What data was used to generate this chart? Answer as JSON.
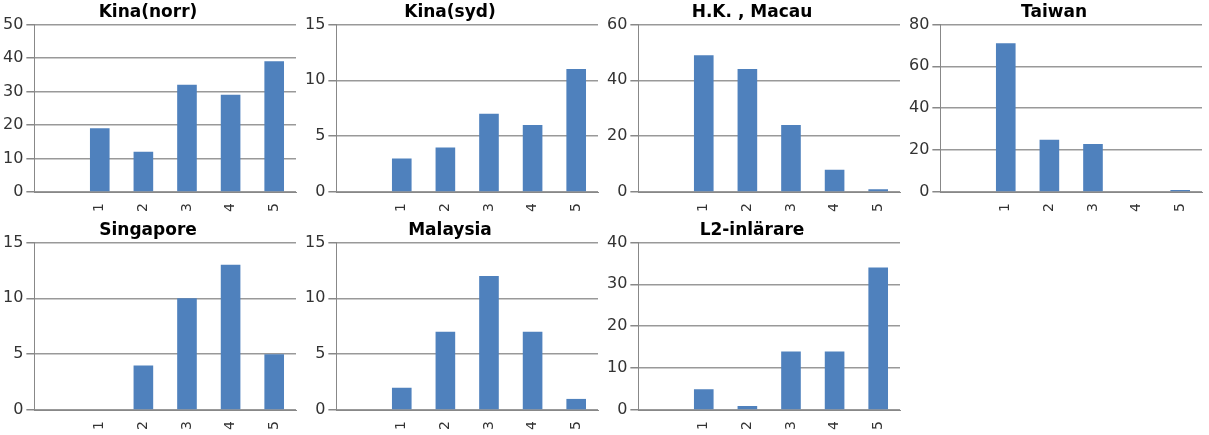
{
  "chart_data": [
    {
      "type": "bar",
      "title": "Kina(norr)",
      "categories": [
        null,
        "1",
        "2",
        "3",
        "4",
        "5"
      ],
      "values": [
        null,
        19,
        12,
        32,
        29,
        39
      ],
      "color": "#4f81bd",
      "ylim": [
        0,
        50
      ],
      "yticks": [
        0,
        10,
        20,
        30,
        40,
        50
      ],
      "grid": "y"
    },
    {
      "type": "bar",
      "title": "Kina(syd)",
      "categories": [
        null,
        "1",
        "2",
        "3",
        "4",
        "5"
      ],
      "values": [
        null,
        3,
        4,
        7,
        6,
        11
      ],
      "color": "#4f81bd",
      "ylim": [
        0,
        15
      ],
      "yticks": [
        0,
        5,
        10,
        15
      ],
      "grid": "y"
    },
    {
      "type": "bar",
      "title": "H.K. , Macau",
      "categories": [
        null,
        "1",
        "2",
        "3",
        "4",
        "5"
      ],
      "values": [
        null,
        49,
        44,
        24,
        8,
        1
      ],
      "color": "#4f81bd",
      "ylim": [
        0,
        60
      ],
      "yticks": [
        0,
        20,
        40,
        60
      ],
      "grid": "y"
    },
    {
      "type": "bar",
      "title": "Taiwan",
      "categories": [
        null,
        "1",
        "2",
        "3",
        "4",
        "5"
      ],
      "values": [
        null,
        71,
        25,
        23,
        0,
        1
      ],
      "color": "#4f81bd",
      "ylim": [
        0,
        80
      ],
      "yticks": [
        0,
        20,
        40,
        60,
        80
      ],
      "grid": "y"
    },
    {
      "type": "bar",
      "title": "Singapore",
      "categories": [
        null,
        "1",
        "2",
        "3",
        "4",
        "5"
      ],
      "values": [
        null,
        0,
        4,
        10,
        13,
        5
      ],
      "color": "#4f81bd",
      "ylim": [
        0,
        15
      ],
      "yticks": [
        0,
        5,
        10,
        15
      ],
      "grid": "y"
    },
    {
      "type": "bar",
      "title": "Malaysia",
      "categories": [
        null,
        "1",
        "2",
        "3",
        "4",
        "5"
      ],
      "values": [
        null,
        2,
        7,
        12,
        7,
        1
      ],
      "color": "#4f81bd",
      "ylim": [
        0,
        15
      ],
      "yticks": [
        0,
        5,
        10,
        15
      ],
      "grid": "y"
    },
    {
      "type": "bar",
      "title": "L2-inlärare",
      "categories": [
        null,
        "1",
        "2",
        "3",
        "4",
        "5"
      ],
      "values": [
        null,
        5,
        1,
        14,
        14,
        34
      ],
      "color": "#4f81bd",
      "ylim": [
        0,
        40
      ],
      "yticks": [
        0,
        10,
        20,
        30,
        40
      ],
      "grid": "y"
    }
  ]
}
